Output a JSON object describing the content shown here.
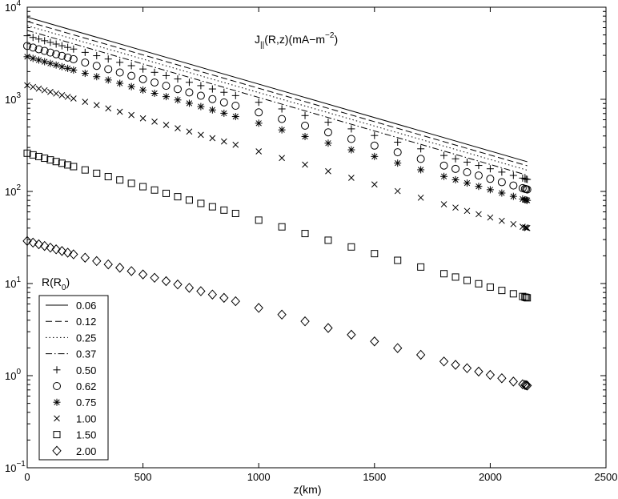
{
  "chart_data": {
    "type": "scatter",
    "title": "",
    "annotation": {
      "main": "J",
      "sub": "||",
      "rest": "(R,z)(mA−m",
      "sup": "−2",
      "close": ")"
    },
    "xlabel": "z(km)",
    "ylabel": "",
    "xlim": [
      0,
      2500
    ],
    "ylim": [
      0.1,
      10000
    ],
    "yscale": "log",
    "grid": false,
    "x_ticks": [
      {
        "value": 0,
        "label": "0"
      },
      {
        "value": 500,
        "label": "500"
      },
      {
        "value": 1000,
        "label": "1000"
      },
      {
        "value": 1500,
        "label": "1500"
      },
      {
        "value": 2000,
        "label": "2000"
      },
      {
        "value": 2500,
        "label": "2500"
      }
    ],
    "y_ticks": [
      {
        "value": 0.1,
        "base": "10",
        "exp": "−1"
      },
      {
        "value": 1,
        "base": "10",
        "exp": "0"
      },
      {
        "value": 10,
        "base": "10",
        "exp": "1"
      },
      {
        "value": 100,
        "base": "10",
        "exp": "2"
      },
      {
        "value": 1000,
        "base": "10",
        "exp": "3"
      },
      {
        "value": 10000,
        "base": "10",
        "exp": "4"
      }
    ],
    "legend": {
      "title_main": "R(R",
      "title_sub": "0",
      "title_close": ")",
      "placement": "lower-left"
    },
    "series": [
      {
        "name": "0.06",
        "style": "solid",
        "y_start": 7800,
        "y_end": 210
      },
      {
        "name": "0.12",
        "style": "dashed",
        "y_start": 7000,
        "y_end": 190
      },
      {
        "name": "0.25",
        "style": "dotted",
        "y_start": 6300,
        "y_end": 170
      },
      {
        "name": "0.37",
        "style": "dashdot",
        "y_start": 5600,
        "y_end": 150
      },
      {
        "name": "0.50",
        "style": "plus",
        "y_start": 4900,
        "y_end": 135
      },
      {
        "name": "0.62",
        "style": "circle",
        "y_start": 3800,
        "y_end": 105
      },
      {
        "name": "0.75",
        "style": "asterisk",
        "y_start": 2900,
        "y_end": 80
      },
      {
        "name": "1.00",
        "style": "cross",
        "y_start": 1420,
        "y_end": 40
      },
      {
        "name": "1.50",
        "style": "square",
        "y_start": 260,
        "y_end": 7
      },
      {
        "name": "2.00",
        "style": "diamond",
        "y_start": 29,
        "y_end": 0.78
      }
    ],
    "x_start": 0,
    "x_end": 2160
  }
}
